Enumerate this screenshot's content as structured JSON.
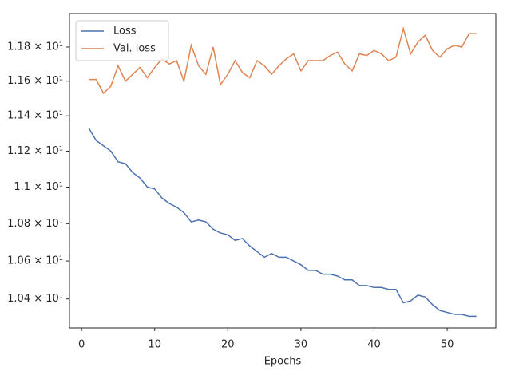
{
  "chart_data": {
    "type": "line",
    "x_label": "Epochs",
    "x": [
      1,
      2,
      3,
      4,
      5,
      6,
      7,
      8,
      9,
      10,
      11,
      12,
      13,
      14,
      15,
      16,
      17,
      18,
      19,
      20,
      21,
      22,
      23,
      24,
      25,
      26,
      27,
      28,
      29,
      30,
      31,
      32,
      33,
      34,
      35,
      36,
      37,
      38,
      39,
      40,
      41,
      42,
      43,
      44,
      45,
      46,
      47,
      48,
      49,
      50,
      51,
      52,
      53,
      54
    ],
    "series": [
      {
        "name": "Loss",
        "color": "#4c72b0",
        "values": [
          11.33,
          11.26,
          11.23,
          11.2,
          11.14,
          11.13,
          11.08,
          11.05,
          11.0,
          10.99,
          10.94,
          10.91,
          10.89,
          10.86,
          10.81,
          10.82,
          10.81,
          10.77,
          10.75,
          10.74,
          10.71,
          10.72,
          10.68,
          10.65,
          10.62,
          10.64,
          10.62,
          10.62,
          10.6,
          10.58,
          10.55,
          10.55,
          10.53,
          10.53,
          10.52,
          10.5,
          10.5,
          10.47,
          10.47,
          10.46,
          10.46,
          10.45,
          10.45,
          10.38,
          10.39,
          10.42,
          10.41,
          10.37,
          10.34,
          10.33,
          10.32,
          10.32,
          10.31,
          10.31
        ]
      },
      {
        "name": "Val. loss",
        "color": "#dd8452",
        "values": [
          11.61,
          11.61,
          11.53,
          11.57,
          11.69,
          11.6,
          11.64,
          11.68,
          11.62,
          11.68,
          11.73,
          11.7,
          11.72,
          11.6,
          11.81,
          11.69,
          11.64,
          11.8,
          11.58,
          11.64,
          11.72,
          11.65,
          11.62,
          11.72,
          11.69,
          11.64,
          11.69,
          11.73,
          11.76,
          11.66,
          11.72,
          11.72,
          11.72,
          11.75,
          11.77,
          11.7,
          11.66,
          11.76,
          11.75,
          11.78,
          11.76,
          11.72,
          11.74,
          11.91,
          11.76,
          11.83,
          11.87,
          11.78,
          11.74,
          11.79,
          11.81,
          11.8,
          11.88,
          11.88
        ]
      }
    ],
    "xlim": [
      -1.65,
      56.65
    ],
    "xticks": [
      0,
      10,
      20,
      30,
      40,
      50
    ],
    "ylim": [
      10.25,
      12.0
    ],
    "y_log": true,
    "yticks": [
      {
        "value": 10.4,
        "label": "1.04 × 10¹"
      },
      {
        "value": 10.6,
        "label": "1.06 × 10¹"
      },
      {
        "value": 10.8,
        "label": "1.08 × 10¹"
      },
      {
        "value": 11.0,
        "label": "1.1 × 10¹"
      },
      {
        "value": 11.2,
        "label": "1.12 × 10¹"
      },
      {
        "value": 11.4,
        "label": "1.14 × 10¹"
      },
      {
        "value": 11.6,
        "label": "1.16 × 10¹"
      },
      {
        "value": 11.8,
        "label": "1.18 × 10¹"
      }
    ],
    "grid": false,
    "legend_position": "upper-left"
  }
}
